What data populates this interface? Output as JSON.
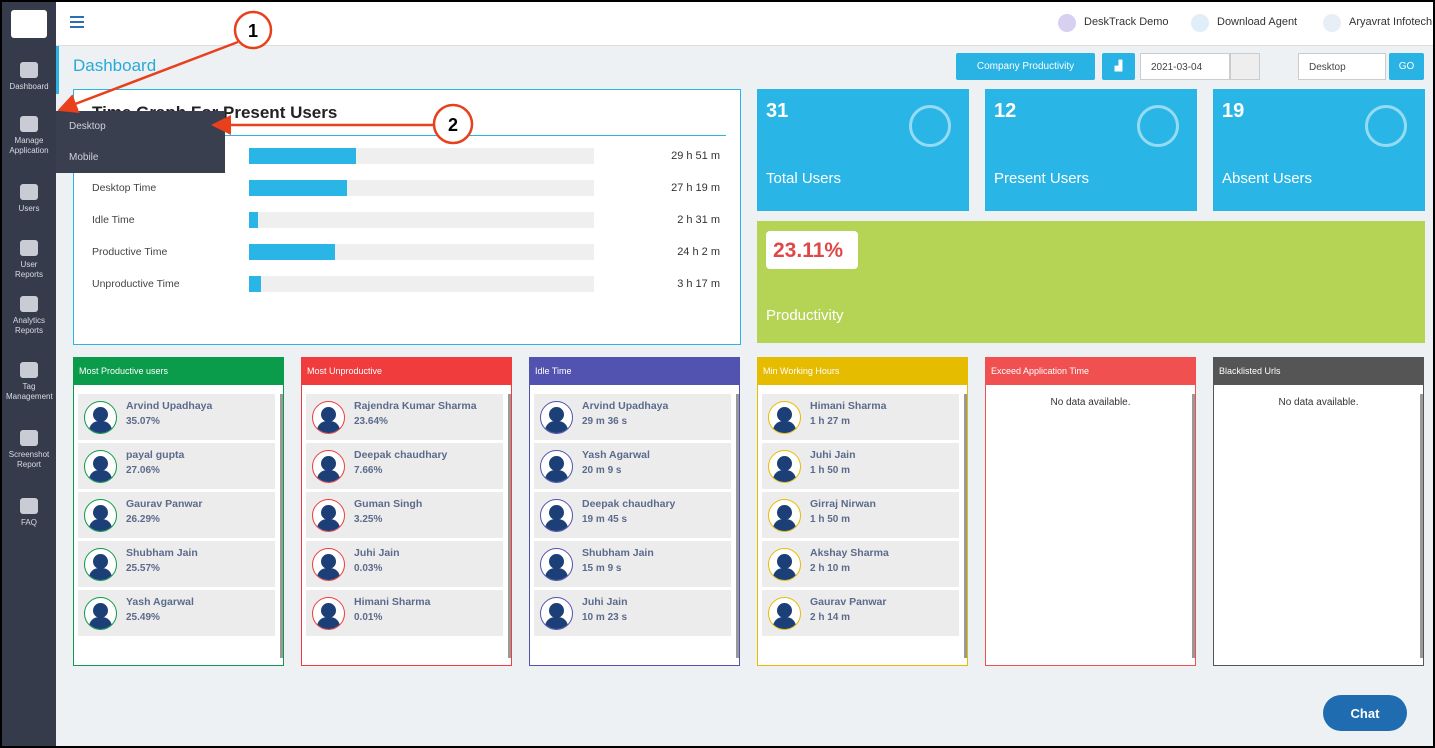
{
  "sidebar": {
    "items": [
      "Dashboard",
      "Manage Application",
      "Users",
      "User Reports",
      "Analytics Reports",
      "Tag Management",
      "Screenshot Report",
      "FAQ"
    ]
  },
  "submenu": [
    "Desktop",
    "Mobile"
  ],
  "topbar": {
    "links": [
      "DeskTrack Demo",
      "Download Agent",
      "Aryavrat Infotech"
    ]
  },
  "page_title": "Dashboard",
  "toolbar": {
    "button": "Company Productivity",
    "date": "2021-03-04",
    "select": "Desktop",
    "go": "GO"
  },
  "time_graph": {
    "title": "Time Graph For Present Users",
    "rows": [
      {
        "value": "29 h 51 m"
      },
      {
        "label": "Desktop Time",
        "value": "27 h 19 m"
      },
      {
        "label": "Idle Time",
        "value": "2 h 31 m"
      },
      {
        "label": "Productive Time",
        "value": "24 h 2 m"
      },
      {
        "label": "Unproductive Time",
        "value": "3 h 17 m"
      }
    ]
  },
  "stats": [
    {
      "value": "31",
      "label": "Total Users"
    },
    {
      "value": "12",
      "label": "Present Users"
    },
    {
      "value": "19",
      "label": "Absent Users"
    }
  ],
  "productivity": {
    "value": "23.11%",
    "label": "Productivity"
  },
  "panels": [
    {
      "title": "Most Productive users",
      "color": "#0a9c4a",
      "entries": [
        {
          "name": "Arvind Upadhaya",
          "value": "35.07%"
        },
        {
          "name": "payal gupta",
          "value": "27.06%"
        },
        {
          "name": "Gaurav Panwar",
          "value": "26.29%"
        },
        {
          "name": "Shubham Jain",
          "value": "25.57%"
        },
        {
          "name": "Yash Agarwal",
          "value": "25.49%"
        }
      ]
    },
    {
      "title": "Most Unproductive",
      "color": "#f03c3c",
      "entries": [
        {
          "name": "Rajendra Kumar Sharma",
          "value": "23.64%"
        },
        {
          "name": "Deepak chaudhary",
          "value": "7.66%"
        },
        {
          "name": "Guman Singh",
          "value": "3.25%"
        },
        {
          "name": "Juhi Jain",
          "value": "0.03%"
        },
        {
          "name": "Himani Sharma",
          "value": "0.01%"
        }
      ]
    },
    {
      "title": "Idle Time",
      "color": "#5252b0",
      "entries": [
        {
          "name": "Arvind Upadhaya",
          "value": "29 m 36 s"
        },
        {
          "name": "Yash Agarwal",
          "value": "20 m 9 s"
        },
        {
          "name": "Deepak chaudhary",
          "value": "19 m 45 s"
        },
        {
          "name": "Shubham Jain",
          "value": "15 m 9 s"
        },
        {
          "name": "Juhi Jain",
          "value": "10 m 23 s"
        }
      ]
    },
    {
      "title": "Min Working Hours",
      "color": "#e6bc00",
      "entries": [
        {
          "name": "Himani Sharma",
          "value": "1 h 27 m"
        },
        {
          "name": "Juhi Jain",
          "value": "1 h 50 m"
        },
        {
          "name": "Girraj Nirwan",
          "value": "1 h 50 m"
        },
        {
          "name": "Akshay Sharma",
          "value": "2 h 10 m"
        },
        {
          "name": "Gaurav Panwar",
          "value": "2 h 14 m"
        }
      ]
    },
    {
      "title": "Exceed Application Time",
      "color": "#f05050",
      "empty": "No data available."
    },
    {
      "title": "Blacklisted Urls",
      "color": "#555555",
      "empty": "No data available."
    }
  ],
  "chat": "Chat",
  "annotations": [
    "1",
    "2"
  ]
}
